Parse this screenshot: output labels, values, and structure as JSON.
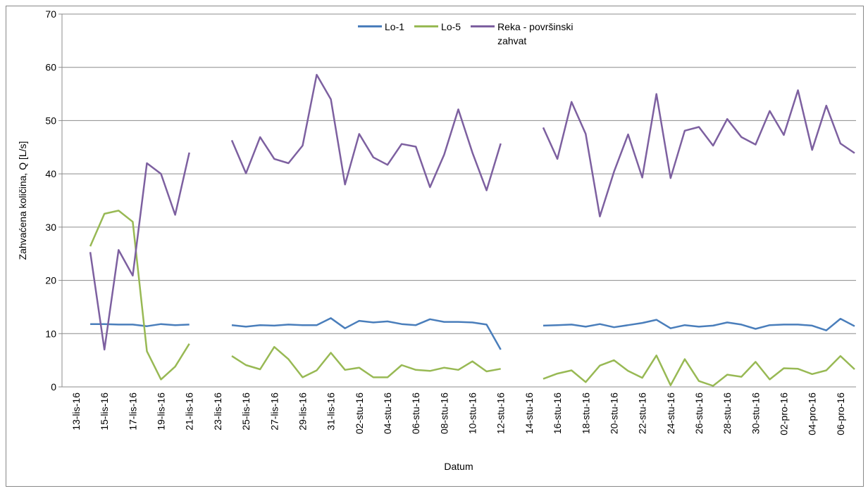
{
  "chart_data": {
    "type": "line",
    "x_label": "Datum",
    "y_label": "Zahvaćena količina, Q [L/s]",
    "categories": [
      "13-lis-16",
      null,
      "15-lis-16",
      null,
      "17-lis-16",
      null,
      "19-lis-16",
      null,
      "21-lis-16",
      null,
      "23-lis-16",
      null,
      "25-lis-16",
      null,
      "27-lis-16",
      null,
      "29-lis-16",
      null,
      "31-lis-16",
      null,
      "02-stu-16",
      null,
      "04-stu-16",
      null,
      "06-stu-16",
      null,
      "08-stu-16",
      null,
      "10-stu-16",
      null,
      "12-stu-16",
      null,
      "14-stu-16",
      null,
      "16-stu-16",
      null,
      "18-stu-16",
      null,
      "20-stu-16",
      null,
      "22-stu-16",
      null,
      "24-stu-16",
      null,
      "26-stu-16",
      null,
      "28-stu-16",
      null,
      "30-stu-16",
      null,
      "02-pro-16",
      null,
      "04-pro-16",
      null,
      "06-pro-16",
      null
    ],
    "series": [
      {
        "name": "Lo-1",
        "color": "#4a7ebb",
        "values": [
          null,
          11.8,
          11.8,
          11.7,
          11.7,
          11.4,
          11.8,
          11.6,
          11.7,
          null,
          null,
          11.6,
          11.3,
          11.6,
          11.5,
          11.7,
          11.6,
          11.6,
          12.9,
          11.0,
          12.4,
          12.1,
          12.3,
          11.8,
          11.6,
          12.7,
          12.2,
          12.2,
          12.1,
          11.7,
          7.0,
          null,
          null,
          11.5,
          11.6,
          11.7,
          11.3,
          11.8,
          11.2,
          11.6,
          12.0,
          12.6,
          11.0,
          11.6,
          11.3,
          11.5,
          12.1,
          11.7,
          10.9,
          11.6,
          11.7,
          11.7,
          11.5,
          10.6,
          12.8,
          11.4
        ]
      },
      {
        "name": "Lo-5",
        "color": "#98b954",
        "values": [
          null,
          26.4,
          32.5,
          33.1,
          31.0,
          6.7,
          1.4,
          3.8,
          8.1,
          null,
          null,
          5.8,
          4.1,
          3.3,
          7.5,
          5.2,
          1.8,
          3.1,
          6.4,
          3.2,
          3.6,
          1.8,
          1.8,
          4.1,
          3.2,
          3.0,
          3.6,
          3.2,
          4.8,
          2.9,
          3.4,
          null,
          null,
          1.5,
          2.5,
          3.1,
          0.9,
          4.0,
          5.0,
          3.0,
          1.7,
          5.9,
          0.3,
          5.2,
          1.1,
          0.2,
          2.3,
          1.9,
          4.7,
          1.4,
          3.5,
          3.4,
          2.4,
          3.1,
          5.8,
          3.3
        ]
      },
      {
        "name": "Reka - površinski zahvat",
        "color": "#7d60a0",
        "values": [
          null,
          25.3,
          7.0,
          25.7,
          20.9,
          42.0,
          40.0,
          32.3,
          44.0,
          null,
          null,
          46.3,
          40.1,
          46.9,
          42.8,
          42.0,
          45.3,
          58.6,
          54.0,
          38.0,
          47.5,
          43.1,
          41.7,
          45.6,
          45.1,
          37.5,
          43.6,
          52.1,
          44.0,
          36.9,
          45.7,
          null,
          null,
          48.7,
          42.8,
          53.5,
          47.5,
          32.0,
          40.4,
          47.4,
          39.3,
          55.0,
          39.2,
          48.1,
          48.8,
          45.3,
          50.3,
          46.9,
          45.5,
          51.8,
          47.3,
          55.7,
          44.5,
          52.8,
          45.7,
          43.9
        ]
      }
    ],
    "ylim": [
      0,
      70
    ],
    "yticks": [
      0,
      10,
      20,
      30,
      40,
      50,
      60,
      70
    ],
    "grid": true,
    "legend": "top"
  }
}
